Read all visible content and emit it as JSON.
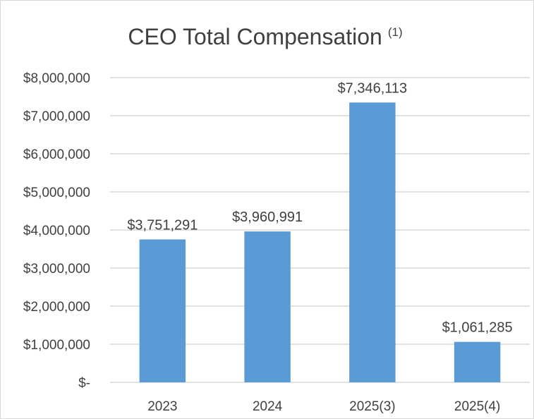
{
  "chart_data": {
    "type": "bar",
    "title": "CEO Total Compensation",
    "title_superscript": "(1)",
    "categories": [
      "2023",
      "2024",
      "2025(3)",
      "2025(4)"
    ],
    "values": [
      3751291,
      3960991,
      7346113,
      1061285
    ],
    "data_labels": [
      "$3,751,291",
      "$3,960,991",
      "$7,346,113",
      "$1,061,285"
    ],
    "ylim": [
      0,
      8000000
    ],
    "yticks": [
      0,
      1000000,
      2000000,
      3000000,
      4000000,
      5000000,
      6000000,
      7000000,
      8000000
    ],
    "ytick_labels": [
      "$-",
      "$1,000,000",
      "$2,000,000",
      "$3,000,000",
      "$4,000,000",
      "$5,000,000",
      "$6,000,000",
      "$7,000,000",
      "$8,000,000"
    ],
    "xlabel": "",
    "ylabel": "",
    "grid": true,
    "legend": "none",
    "colors": {
      "bar": "#5b9bd5",
      "grid": "#d9d9d9",
      "text": "#404040"
    }
  }
}
